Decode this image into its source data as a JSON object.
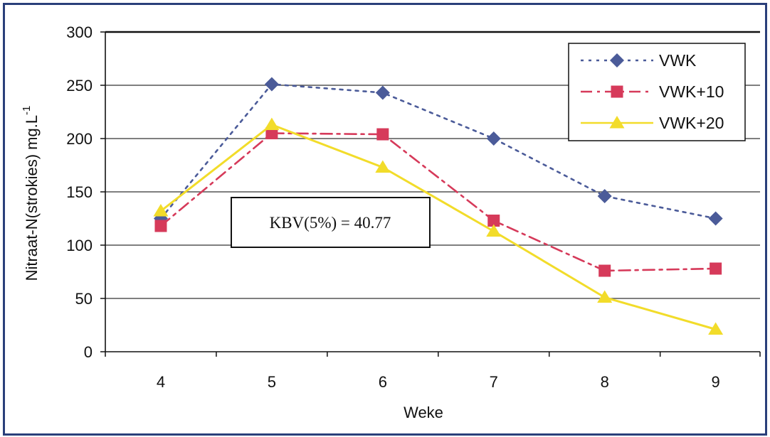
{
  "chart_data": {
    "type": "line",
    "title": "",
    "xlabel": "Weke",
    "ylabel": "Nitraat-N(strokies) mg.L",
    "ylabel_superscript": "-1",
    "x": [
      4,
      5,
      6,
      7,
      8,
      9
    ],
    "xticks": [
      "4",
      "5",
      "6",
      "7",
      "8",
      "9"
    ],
    "yticks": [
      "0",
      "50",
      "100",
      "150",
      "200",
      "250",
      "300"
    ],
    "ylim": [
      0,
      300
    ],
    "grid": "horizontal",
    "legend_position": "top-right",
    "series": [
      {
        "name": "VWK",
        "values": [
          125,
          251,
          243,
          200,
          146,
          125
        ],
        "color": "#4b5b99",
        "marker": "diamond",
        "line": "dotted"
      },
      {
        "name": "VWK+10",
        "values": [
          118,
          205,
          204,
          123,
          76,
          78
        ],
        "color": "#d63a5a",
        "marker": "square",
        "line": "dashdot"
      },
      {
        "name": "VWK+20",
        "values": [
          132,
          213,
          173,
          113,
          51,
          21
        ],
        "color": "#f2dc2a",
        "marker": "triangle",
        "line": "solid"
      }
    ],
    "annotation": "KBV(5%) = 40.77"
  }
}
